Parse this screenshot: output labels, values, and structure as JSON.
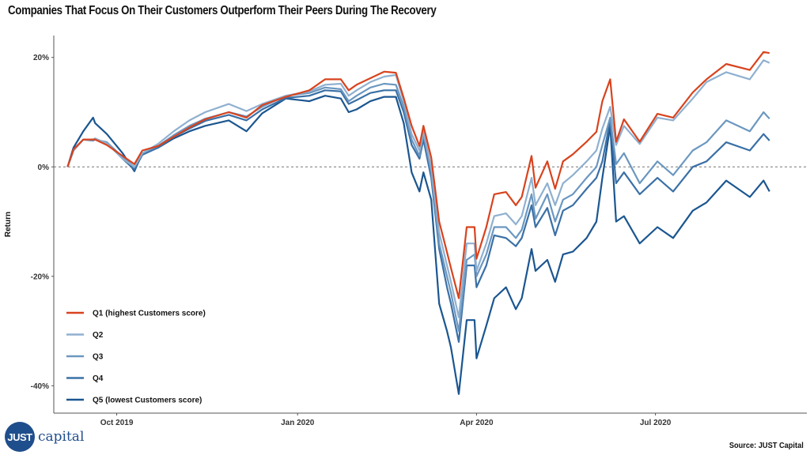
{
  "chart_data": {
    "type": "line",
    "title": "Companies That Focus On Their Customers Outperform Their Peers During The Recovery",
    "xlabel": "",
    "ylabel": "Return",
    "source": "Source: JUST Capital",
    "logo_text": "JUST capital",
    "xlim": [
      "2019-08-30",
      "2020-09-16"
    ],
    "ylim": [
      -45,
      24
    ],
    "x_ticks": [
      {
        "date": "2019-10-01",
        "label": "Oct 2019"
      },
      {
        "date": "2020-01-01",
        "label": "Jan 2020"
      },
      {
        "date": "2020-04-01",
        "label": "Apr 2020"
      },
      {
        "date": "2020-07-01",
        "label": "Jul 2020"
      }
    ],
    "y_ticks": [
      {
        "value": 20,
        "label": "20%"
      },
      {
        "value": 0,
        "label": "0%"
      },
      {
        "value": -20,
        "label": "-20%"
      },
      {
        "value": -40,
        "label": "-40%"
      }
    ],
    "reference_line": {
      "value": 0,
      "style": "dashed"
    },
    "grid": false,
    "legend_placement": "bottom-left",
    "x": [
      "2019-09-06",
      "2019-09-09",
      "2019-09-14",
      "2019-09-19",
      "2019-09-20",
      "2019-09-26",
      "2019-10-04",
      "2019-10-10",
      "2019-10-14",
      "2019-10-22",
      "2019-10-30",
      "2019-11-07",
      "2019-11-15",
      "2019-11-27",
      "2019-12-06",
      "2019-12-14",
      "2019-12-26",
      "2020-01-07",
      "2020-01-15",
      "2020-01-23",
      "2020-01-27",
      "2020-01-31",
      "2020-02-07",
      "2020-02-14",
      "2020-02-20",
      "2020-02-24",
      "2020-02-28",
      "2020-03-03",
      "2020-03-05",
      "2020-03-09",
      "2020-03-13",
      "2020-03-17",
      "2020-03-19",
      "2020-03-23",
      "2020-03-27",
      "2020-03-31",
      "2020-04-01",
      "2020-04-06",
      "2020-04-10",
      "2020-04-16",
      "2020-04-21",
      "2020-04-24",
      "2020-04-29",
      "2020-05-01",
      "2020-05-07",
      "2020-05-11",
      "2020-05-15",
      "2020-05-20",
      "2020-05-27",
      "2020-06-01",
      "2020-06-04",
      "2020-06-08",
      "2020-06-11",
      "2020-06-15",
      "2020-06-23",
      "2020-07-02",
      "2020-07-10",
      "2020-07-20",
      "2020-07-27",
      "2020-08-06",
      "2020-08-18",
      "2020-08-25",
      "2020-08-28"
    ],
    "series": [
      {
        "name": "Q1 (highest Customers score)",
        "color": "#d8431e",
        "values": [
          0,
          3.2,
          5,
          5,
          5,
          4,
          2,
          0.5,
          3,
          3.8,
          5.5,
          7.2,
          8.7,
          10,
          9,
          11.3,
          12.8,
          14,
          16,
          16,
          14,
          15,
          16.2,
          17.4,
          17.2,
          12.6,
          7.5,
          3.8,
          7.5,
          1.7,
          -10,
          -15.6,
          -18.5,
          -24,
          -11,
          -11,
          -16.8,
          -11,
          -5,
          -4.6,
          -7,
          -5.5,
          2,
          -3.8,
          1,
          -4,
          1,
          2.3,
          4.6,
          6.4,
          12,
          16,
          4.6,
          8.7,
          4.6,
          9.7,
          9,
          13.6,
          16,
          18.8,
          17.7,
          21,
          20.8
        ]
      },
      {
        "name": "Q2",
        "color": "#8fb0d0",
        "values": [
          0,
          3,
          5,
          5,
          5.2,
          4.3,
          1.5,
          0,
          2.5,
          4.2,
          6.5,
          8.5,
          10,
          11.5,
          10.2,
          11.5,
          13,
          13.8,
          15,
          15.2,
          13,
          14,
          15.5,
          16.5,
          16.8,
          12,
          6,
          3,
          6.5,
          0,
          -12,
          -18,
          -21,
          -27.5,
          -14,
          -14,
          -19,
          -14,
          -9,
          -8.5,
          -10.5,
          -9,
          -2,
          -7,
          -3,
          -7,
          -3,
          -1.5,
          1,
          3,
          7,
          11,
          4,
          7.5,
          4.2,
          9,
          8.5,
          12.5,
          15.5,
          17.3,
          16,
          19.5,
          19
        ]
      },
      {
        "name": "Q3",
        "color": "#6b97c0",
        "values": [
          0,
          3,
          5,
          4.8,
          5,
          4.5,
          1.8,
          0,
          2.5,
          3.8,
          5.8,
          7.5,
          8.8,
          10,
          9.2,
          11,
          13,
          13.5,
          14.5,
          14.2,
          12,
          13,
          14.5,
          15.2,
          15,
          11,
          5,
          2,
          6,
          -1,
          -14,
          -20,
          -23,
          -30,
          -17,
          -16,
          -20,
          -16,
          -11,
          -11,
          -13,
          -11.5,
          -5,
          -9.5,
          -5,
          -10,
          -6,
          -5,
          -2,
          0,
          4,
          9,
          0.5,
          2.5,
          -3,
          1,
          -1.5,
          3,
          4.5,
          8.5,
          6.5,
          10,
          8.8
        ]
      },
      {
        "name": "Q4",
        "color": "#3a70a6",
        "values": [
          0,
          3,
          5,
          4.8,
          5,
          4.5,
          1.5,
          -0.5,
          2.2,
          3.5,
          5.5,
          7,
          8.4,
          9.5,
          8.5,
          10.5,
          12.6,
          13,
          14,
          13.8,
          11.5,
          12.2,
          13.5,
          14,
          14,
          10,
          4,
          1.5,
          5,
          -2,
          -15,
          -22,
          -25,
          -32,
          -18,
          -18,
          -22,
          -18,
          -12.5,
          -13,
          -14.5,
          -13,
          -7,
          -11,
          -7.5,
          -12.5,
          -8,
          -7,
          -4,
          -2,
          1,
          8.5,
          -3,
          -1,
          -5,
          -2,
          -4.5,
          0,
          1,
          4.5,
          3,
          6,
          4.8
        ]
      },
      {
        "name": "Q5 (lowest Customers score)",
        "color": "#1b5690",
        "values": [
          0,
          3.5,
          6.5,
          9,
          8,
          6,
          2.5,
          -0.8,
          2.5,
          3.5,
          5.2,
          6.5,
          7.5,
          8.5,
          6.5,
          9.8,
          12.5,
          12,
          13,
          12.5,
          10,
          10.5,
          12,
          12.8,
          12.8,
          8,
          -1,
          -4.5,
          -1,
          -6,
          -25,
          -30,
          -33,
          -41.5,
          -28,
          -28,
          -35,
          -29,
          -24,
          -22,
          -26,
          -24,
          -15,
          -19,
          -17,
          -21,
          -16,
          -15.5,
          -13,
          -10,
          -2,
          7.5,
          -10,
          -9,
          -14,
          -11,
          -13,
          -8,
          -6.5,
          -2.5,
          -5.5,
          -2.5,
          -4.5
        ]
      }
    ]
  }
}
